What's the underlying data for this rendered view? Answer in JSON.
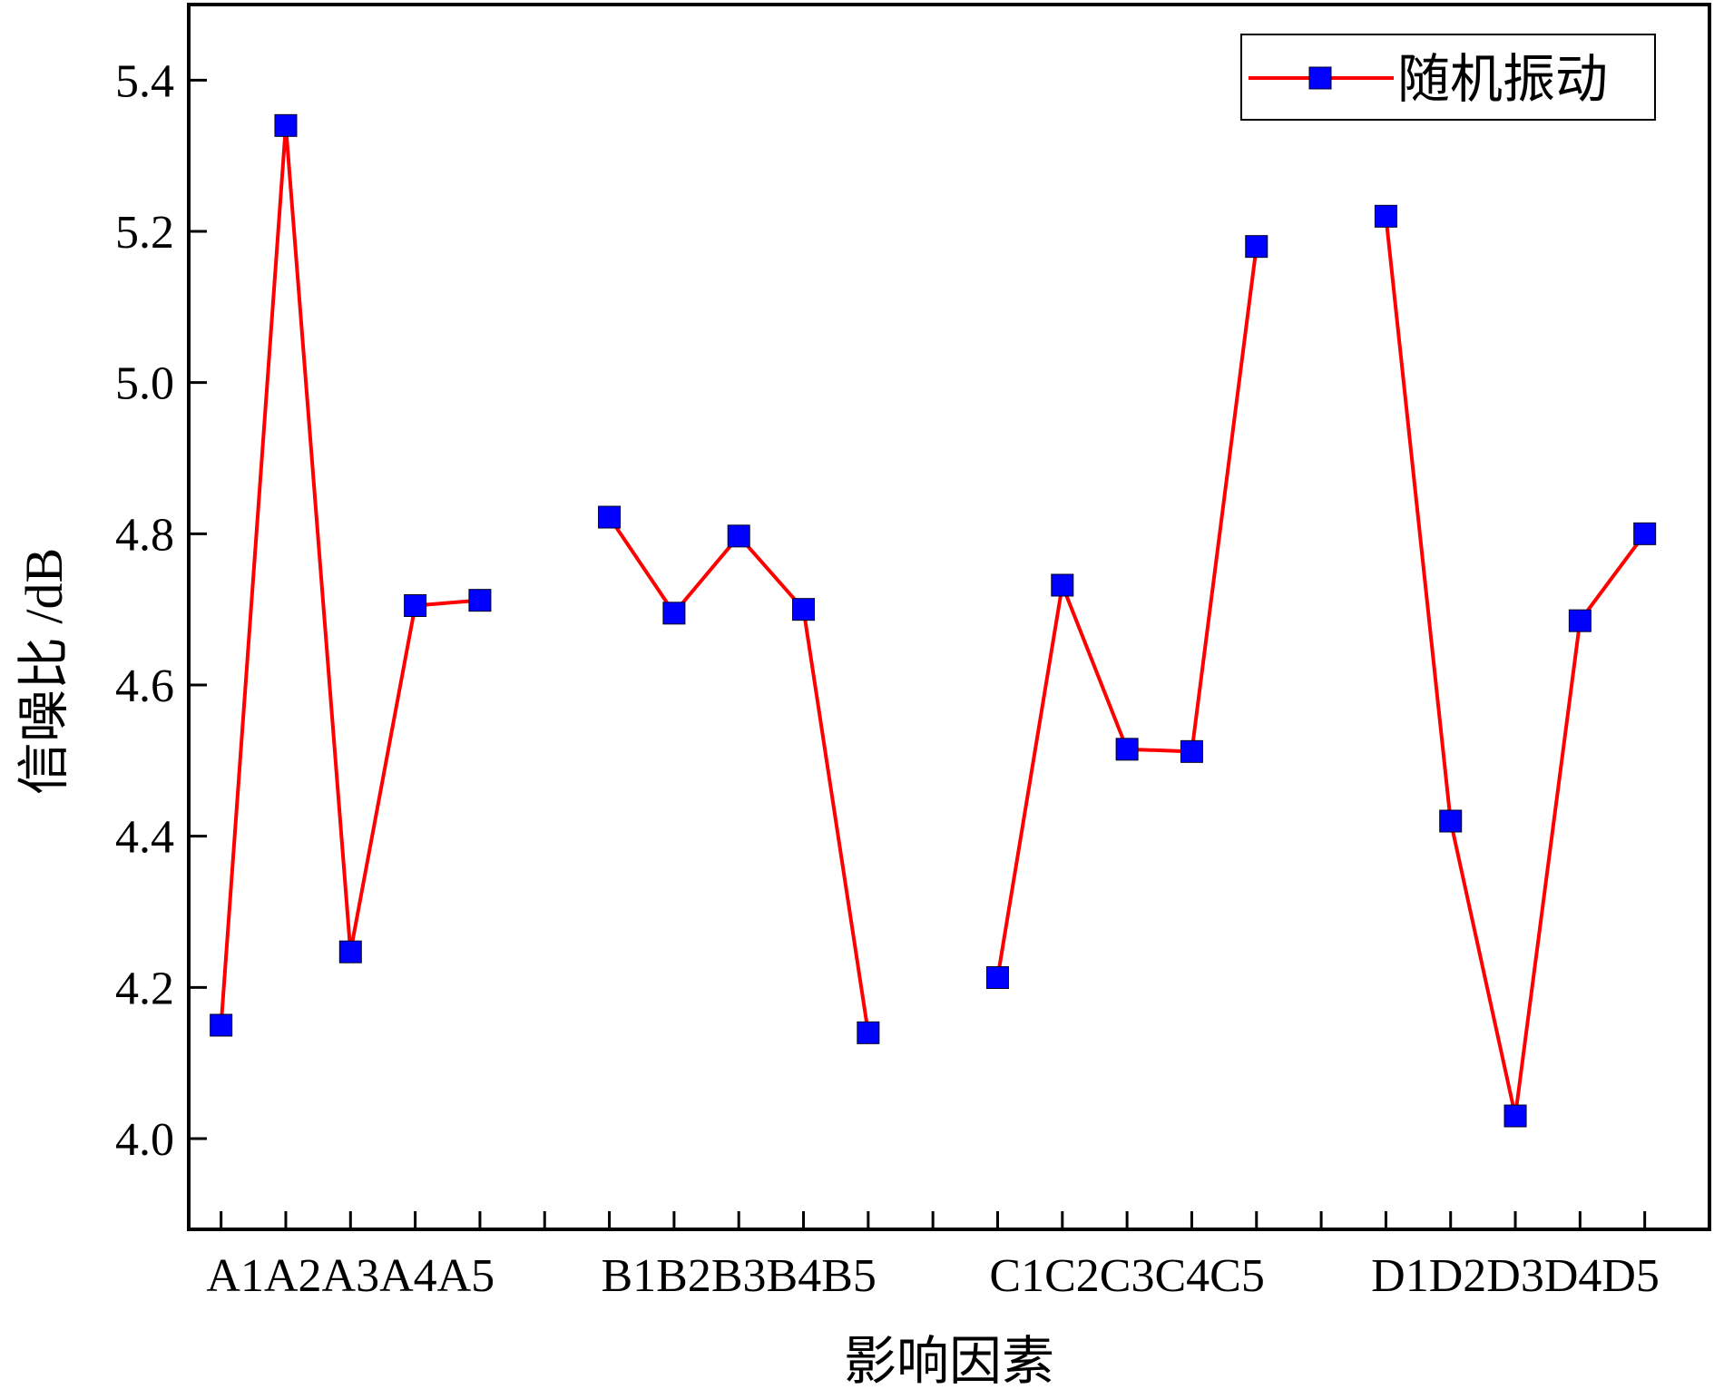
{
  "chart_data": {
    "type": "line",
    "title": "",
    "xlabel": "影响因素",
    "ylabel": "信噪比 /dB",
    "ylim": [
      3.88,
      5.5
    ],
    "yticks": [
      4.0,
      4.2,
      4.4,
      4.6,
      4.8,
      5.0,
      5.2,
      5.4
    ],
    "ytick_labels": [
      "4.0",
      "4.2",
      "4.4",
      "4.6",
      "4.8",
      "5.0",
      "5.2",
      "5.4"
    ],
    "grid": false,
    "legend": {
      "position": "top-right",
      "entries": [
        "随机振动"
      ]
    },
    "x": [
      1,
      2,
      3,
      4,
      5,
      7,
      8,
      9,
      10,
      11,
      13,
      14,
      15,
      16,
      17,
      19,
      20,
      21,
      22,
      23
    ],
    "xlim": [
      0.5,
      24
    ],
    "xticks": [
      1,
      2,
      3,
      4,
      5,
      6,
      7,
      8,
      9,
      10,
      11,
      12,
      13,
      14,
      15,
      16,
      17,
      18,
      19,
      20,
      21,
      22,
      23,
      24
    ],
    "categories": [
      "A1",
      "A2",
      "A3",
      "A4",
      "A5",
      "B1",
      "B2",
      "B3",
      "B4",
      "B5",
      "C1",
      "C2",
      "C3",
      "C4",
      "C5",
      "D1",
      "D2",
      "D3",
      "D4",
      "D5"
    ],
    "category_groups": [
      {
        "label": "A1A2A3A4A5",
        "center": 3
      },
      {
        "label": "B1B2B3B4B5",
        "center": 9
      },
      {
        "label": "C1C2C3C4C5",
        "center": 15
      },
      {
        "label": "D1D2D3D4D5",
        "center": 21
      }
    ],
    "series": [
      {
        "name": "随机振动",
        "line_color": "#ff0000",
        "marker_color": "#0000ff",
        "marker": "square",
        "segments": [
          [
            4.15,
            5.34,
            4.247,
            4.705,
            4.712
          ],
          [
            4.822,
            4.695,
            4.797,
            4.7,
            4.14
          ],
          [
            4.213,
            4.732,
            4.515,
            4.512,
            5.18
          ],
          [
            5.22,
            4.42,
            4.03,
            4.685,
            4.8
          ]
        ]
      }
    ]
  }
}
